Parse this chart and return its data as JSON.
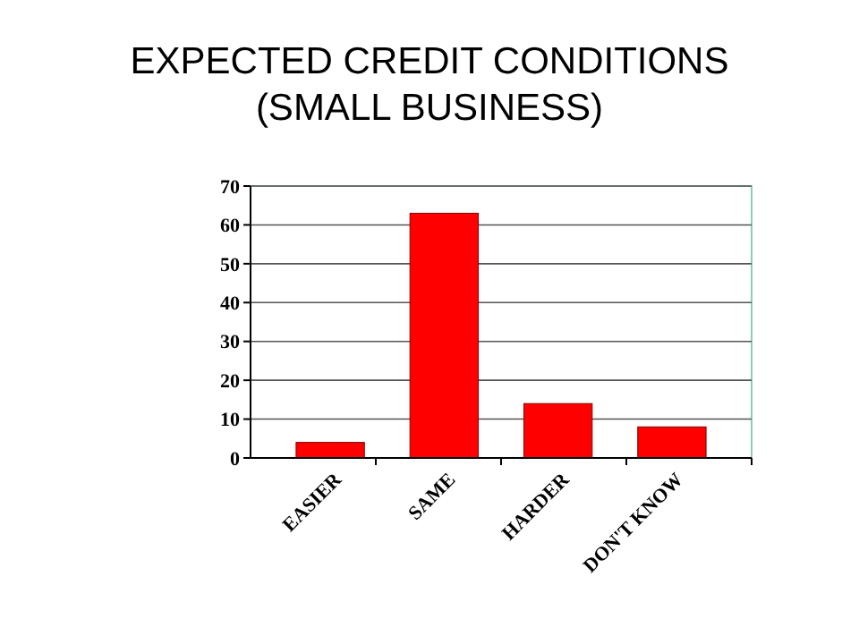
{
  "chart_data": {
    "type": "bar",
    "title": "EXPECTED CREDIT CONDITIONS\n(SMALL BUSINESS)",
    "categories": [
      "EASIER",
      "SAME",
      "HARDER",
      "DON'T KNOW"
    ],
    "values": [
      4,
      63,
      14,
      8
    ],
    "color": "#ff0000",
    "ylim": [
      0,
      70
    ],
    "yticks": [
      0,
      10,
      20,
      30,
      40,
      50,
      60,
      70
    ],
    "grid": "y"
  }
}
